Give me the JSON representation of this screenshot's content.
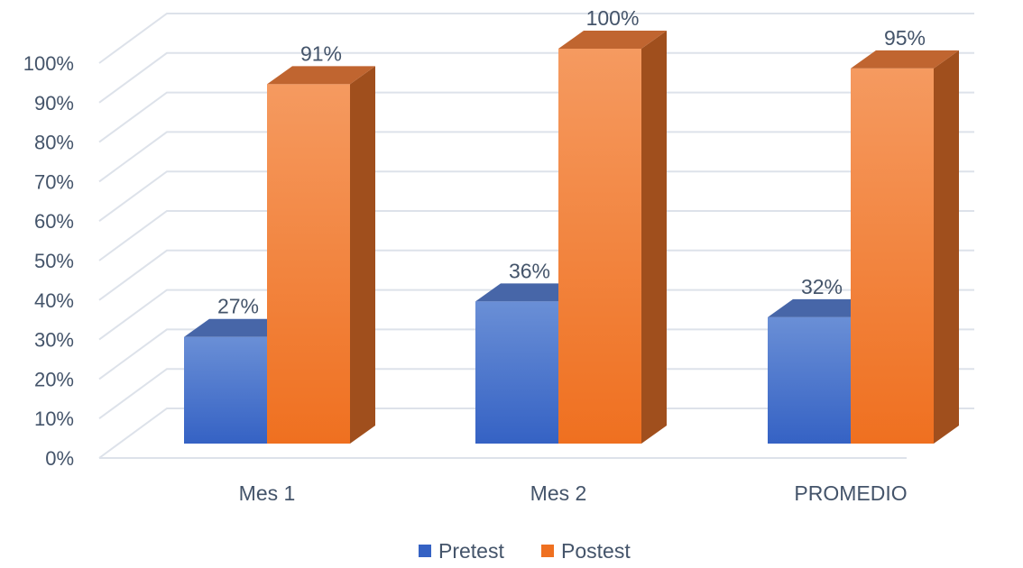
{
  "chart_data": {
    "type": "bar",
    "categories": [
      "Mes 1",
      "Mes 2",
      "PROMEDIO"
    ],
    "series": [
      {
        "name": "Pretest",
        "values": [
          27,
          36,
          32
        ],
        "labels": [
          "27%",
          "36%",
          "32%"
        ]
      },
      {
        "name": "Postest",
        "values": [
          91,
          100,
          95
        ],
        "labels": [
          "91%",
          "100%",
          "95%"
        ]
      }
    ],
    "y_ticks": [
      "0%",
      "10%",
      "20%",
      "30%",
      "40%",
      "50%",
      "60%",
      "70%",
      "80%",
      "90%",
      "100%"
    ],
    "ylim": [
      0,
      100
    ],
    "grid": true,
    "legend_position": "bottom",
    "style": "3d-clustered-column",
    "colors": {
      "Pretest": {
        "front_top": "#6a8fd6",
        "front_bottom": "#3562c4",
        "top": "#4766a8",
        "side": "#2f4f93"
      },
      "Postest": {
        "front_top": "#f59a60",
        "front_bottom": "#ef7020",
        "top": "#c06530",
        "side": "#a04f1d"
      },
      "grid": "#dde2ea",
      "text": "#44546a"
    }
  }
}
